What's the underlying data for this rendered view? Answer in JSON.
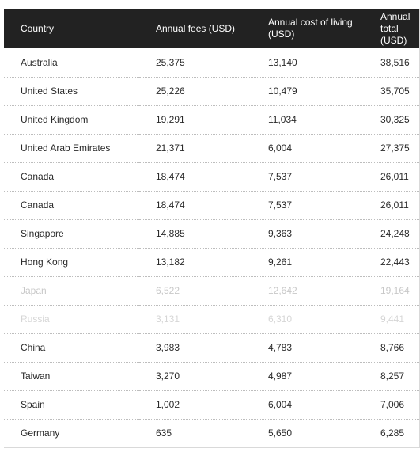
{
  "table": {
    "headers": {
      "country": "Country",
      "fees": "Annual fees (USD)",
      "living": "Annual cost of living (USD)",
      "total": "Annual total (USD)"
    },
    "rows": [
      {
        "country": "Australia",
        "fees": "25,375",
        "living": "13,140",
        "total": "38,516",
        "style": ""
      },
      {
        "country": "United States",
        "fees": "25,226",
        "living": "10,479",
        "total": "35,705",
        "style": ""
      },
      {
        "country": "United Kingdom",
        "fees": "19,291",
        "living": "11,034",
        "total": "30,325",
        "style": ""
      },
      {
        "country": "United Arab Emirates",
        "fees": "21,371",
        "living": "6,004",
        "total": "27,375",
        "style": ""
      },
      {
        "country": "Canada",
        "fees": "18,474",
        "living": "7,537",
        "total": "26,011",
        "style": ""
      },
      {
        "country": "Canada",
        "fees": "18,474",
        "living": "7,537",
        "total": "26,011",
        "style": ""
      },
      {
        "country": "Singapore",
        "fees": "14,885",
        "living": "9,363",
        "total": "24,248",
        "style": ""
      },
      {
        "country": "Hong Kong",
        "fees": "13,182",
        "living": "9,261",
        "total": "22,443",
        "style": ""
      },
      {
        "country": "Japan",
        "fees": "6,522",
        "living": "12,642",
        "total": "19,164",
        "style": "faded"
      },
      {
        "country": "Russia",
        "fees": "3,131",
        "living": "6,310",
        "total": "9,441",
        "style": "semi"
      },
      {
        "country": "China",
        "fees": "3,983",
        "living": "4,783",
        "total": "8,766",
        "style": ""
      },
      {
        "country": "Taiwan",
        "fees": "3,270",
        "living": "4,987",
        "total": "8,257",
        "style": ""
      },
      {
        "country": "Spain",
        "fees": "1,002",
        "living": "6,004",
        "total": "7,006",
        "style": ""
      },
      {
        "country": "Germany",
        "fees": "635",
        "living": "5,650",
        "total": "6,285",
        "style": ""
      }
    ]
  },
  "colors": {
    "header_bg": "#222222",
    "header_text": "#ffffff",
    "row_text": "#2a2a2a",
    "divider": "#bdbdbd"
  }
}
